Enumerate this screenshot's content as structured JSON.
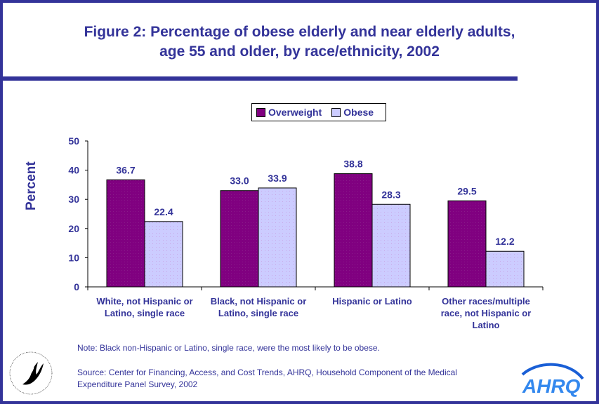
{
  "header": {
    "title_line1": "Figure 2: Percentage of obese elderly and near elderly adults,",
    "title_line2": "age 55 and older, by race/ethnicity, 2002"
  },
  "colors": {
    "frame": "#333399",
    "text": "#333399",
    "overweight": "#800080",
    "obese": "#ccccff"
  },
  "chart_data": {
    "type": "bar",
    "title": "Figure 2: Percentage of obese elderly and near elderly adults, age 55 and older, by race/ethnicity, 2002",
    "xlabel": "",
    "ylabel": "Percent",
    "ylim": [
      0,
      50
    ],
    "yticks": [
      0,
      10,
      20,
      30,
      40,
      50
    ],
    "ytick_labels": [
      "0",
      "10",
      "20",
      "30",
      "40",
      "50"
    ],
    "grid": false,
    "legend_position": "top-center",
    "categories": [
      [
        "White, not Hispanic or",
        "Latino, single race"
      ],
      [
        "Black, not Hispanic or",
        "Latino, single race"
      ],
      [
        "Hispanic or Latino"
      ],
      [
        "Other races/multiple",
        "race, not Hispanic or",
        "Latino"
      ]
    ],
    "series": [
      {
        "name": "Overweight",
        "values": [
          36.7,
          33.0,
          38.8,
          29.5
        ],
        "labels": [
          "36.7",
          "33.0",
          "38.8",
          "29.5"
        ]
      },
      {
        "name": "Obese",
        "values": [
          22.4,
          33.9,
          28.3,
          12.2
        ],
        "labels": [
          "22.4",
          "33.9",
          "28.3",
          "12.2"
        ]
      }
    ]
  },
  "footer": {
    "note": "Note: Black non-Hispanic or Latino, single race, were the most likely to be obese.",
    "source_line1": "Source: Center for Financing, Access, and Cost Trends, AHRQ, Household Component of the Medical",
    "source_line2": "Expenditure Panel Survey, 2002",
    "hhs_logo": "hhs-eagle-seal-icon",
    "hhs_seal_text": "DEPARTMENT OF HEALTH & HUMAN SERVICES-USA",
    "ahrq_logo": "AHRQ"
  }
}
